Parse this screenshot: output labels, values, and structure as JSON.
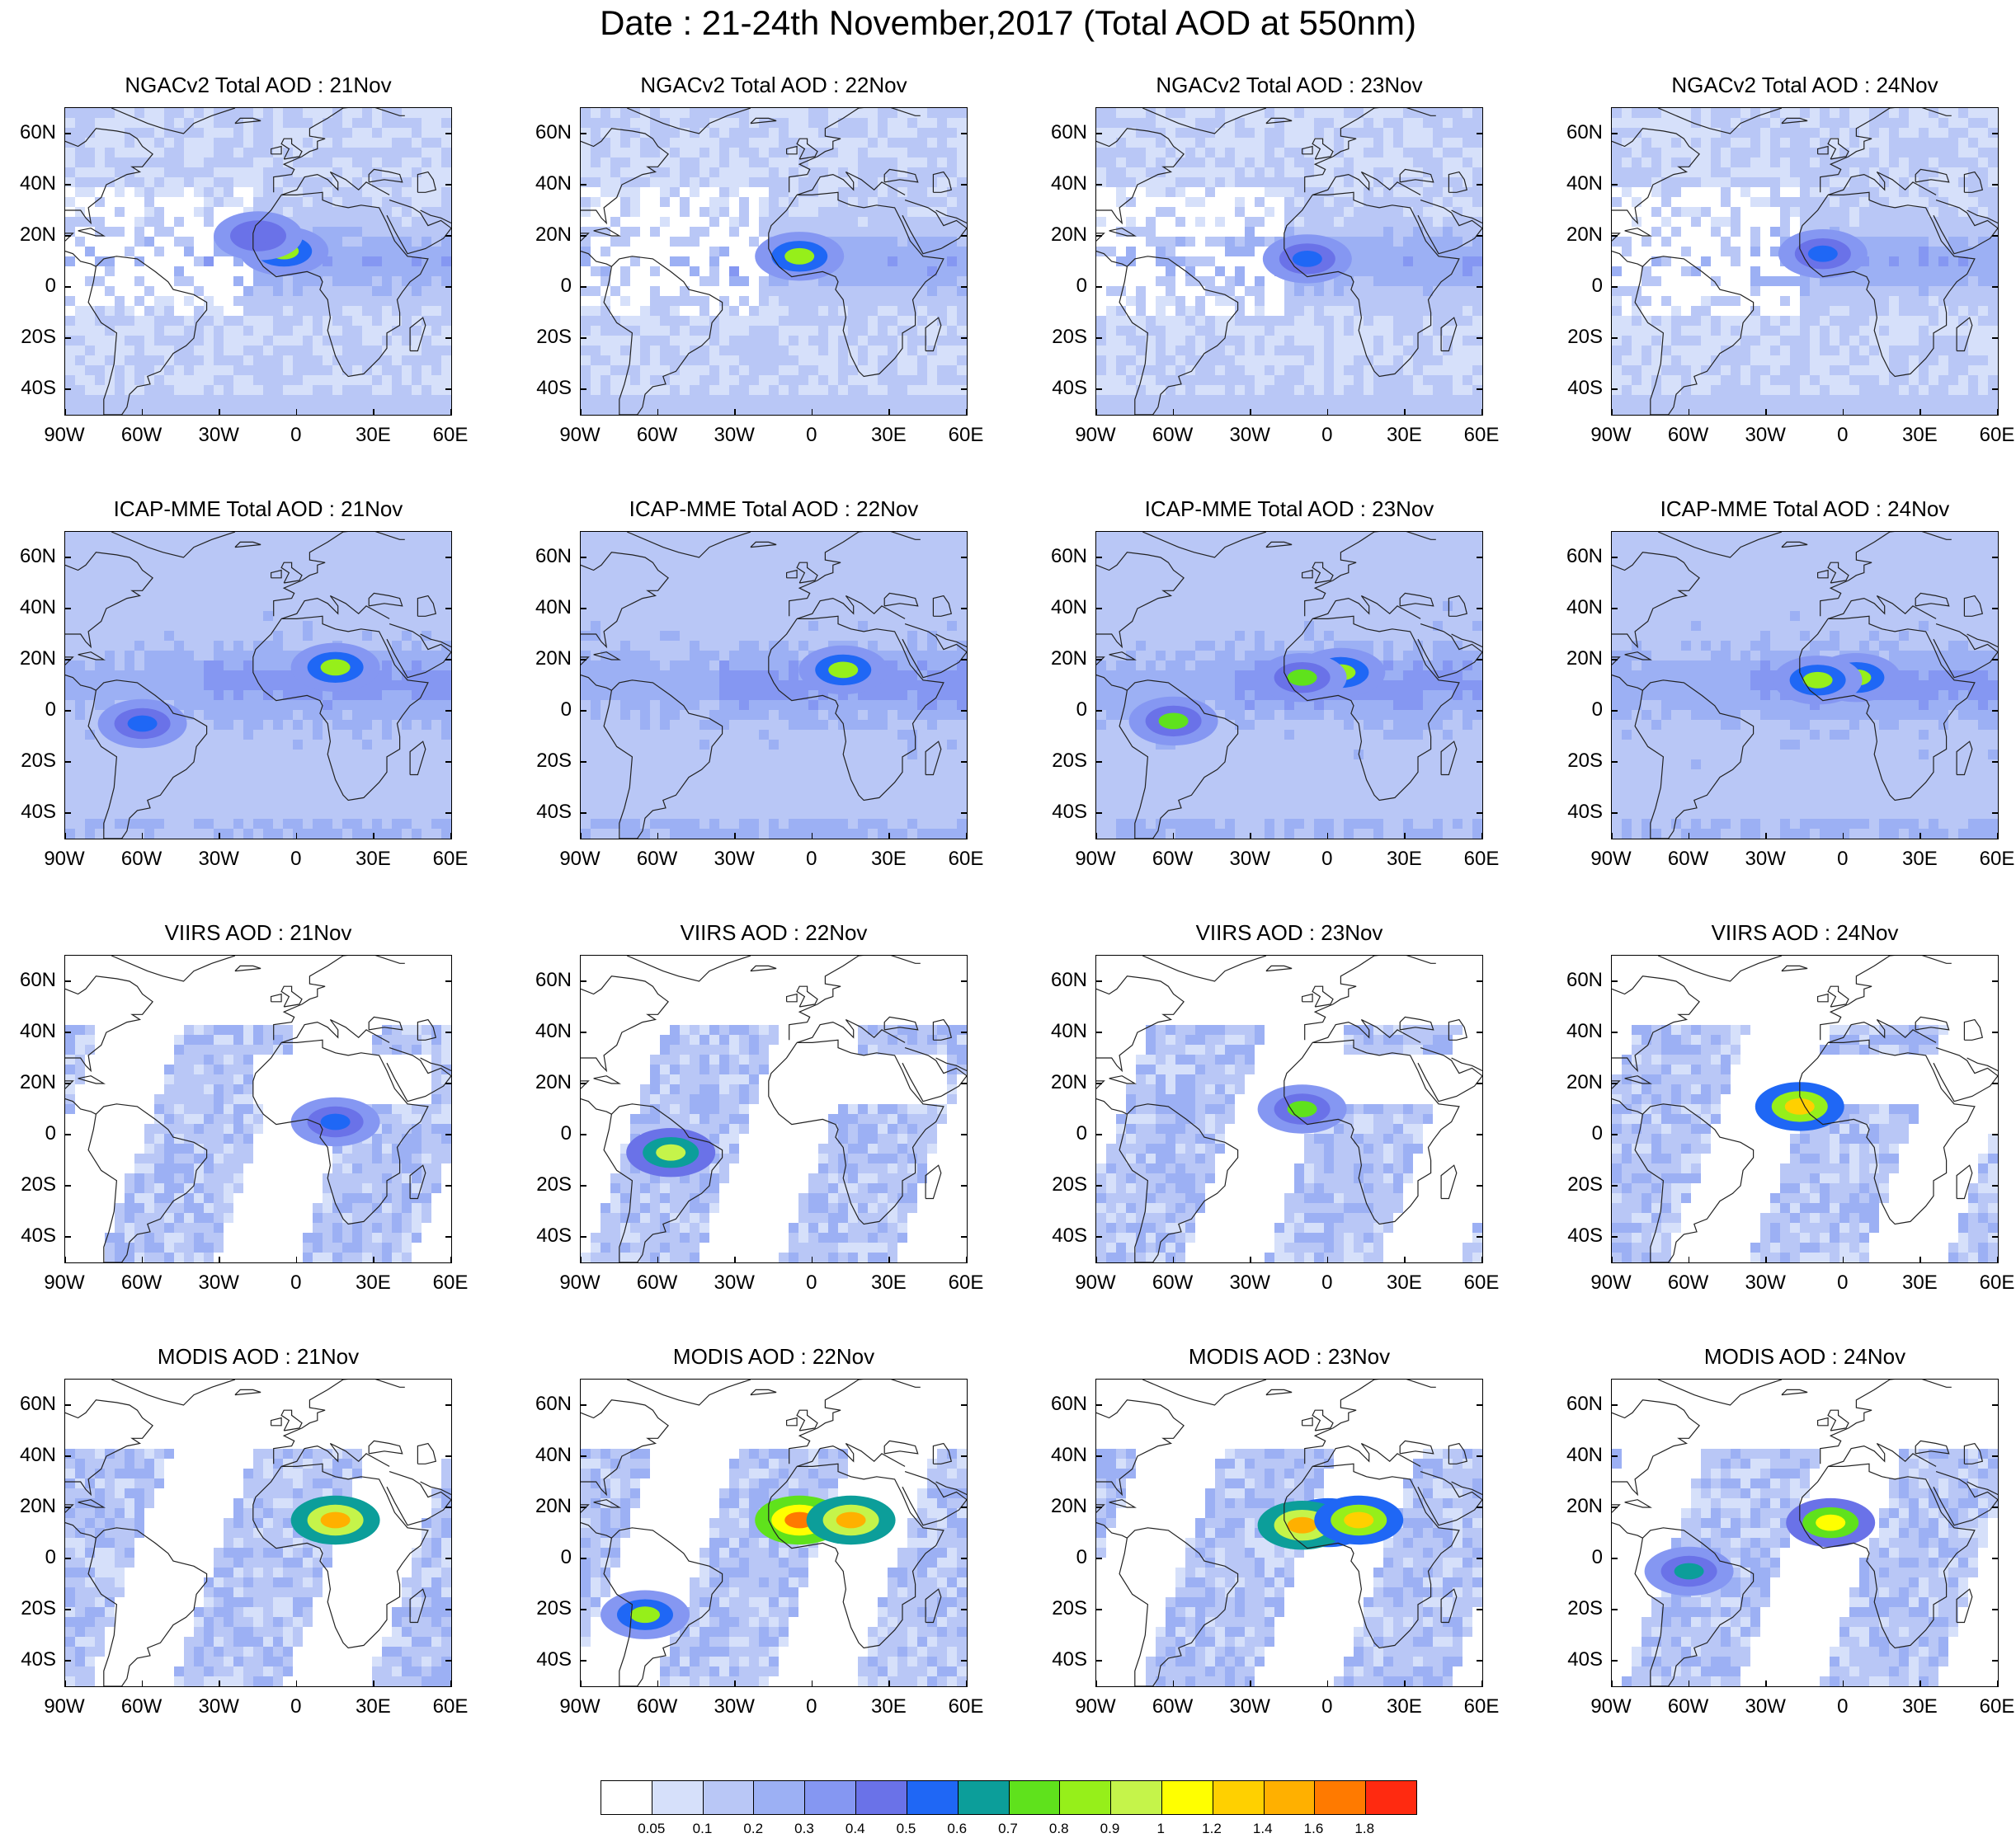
{
  "figure": {
    "title": "Date : 21-24th November,2017 (Total AOD at 550nm)"
  },
  "axes": {
    "lon_range": [
      -90,
      60
    ],
    "lat_range": [
      -50,
      70
    ],
    "lat_ticks": [
      {
        "value": 60,
        "label": "60N"
      },
      {
        "value": 40,
        "label": "40N"
      },
      {
        "value": 20,
        "label": "20N"
      },
      {
        "value": 0,
        "label": "0"
      },
      {
        "value": -20,
        "label": "20S"
      },
      {
        "value": -40,
        "label": "40S"
      }
    ],
    "lon_ticks": [
      {
        "value": -90,
        "label": "90W"
      },
      {
        "value": -60,
        "label": "60W"
      },
      {
        "value": -30,
        "label": "30W"
      },
      {
        "value": 0,
        "label": "0"
      },
      {
        "value": 30,
        "label": "30E"
      },
      {
        "value": 60,
        "label": "60E"
      }
    ]
  },
  "panels": [
    {
      "title": "NGACv2 Total AOD : 21Nov",
      "source": "NGACv2",
      "day": 21,
      "hotspots": [
        {
          "lon": -5,
          "lat": 14,
          "aod": 0.8
        },
        {
          "lon": -15,
          "lat": 20,
          "aod": 0.4
        }
      ]
    },
    {
      "title": "NGACv2 Total AOD : 22Nov",
      "source": "NGACv2",
      "day": 22,
      "hotspots": [
        {
          "lon": -5,
          "lat": 12,
          "aod": 0.8
        }
      ]
    },
    {
      "title": "NGACv2 Total AOD : 23Nov",
      "source": "NGACv2",
      "day": 23,
      "hotspots": [
        {
          "lon": -8,
          "lat": 11,
          "aod": 0.5
        }
      ]
    },
    {
      "title": "NGACv2 Total AOD : 24Nov",
      "source": "NGACv2",
      "day": 24,
      "hotspots": [
        {
          "lon": -8,
          "lat": 13,
          "aod": 0.5
        }
      ]
    },
    {
      "title": "ICAP-MME Total AOD : 21Nov",
      "source": "ICAP-MME",
      "day": 21,
      "hotspots": [
        {
          "lon": 15,
          "lat": 17,
          "aod": 0.8
        },
        {
          "lon": -60,
          "lat": -5,
          "aod": 0.5
        }
      ]
    },
    {
      "title": "ICAP-MME Total AOD : 22Nov",
      "source": "ICAP-MME",
      "day": 22,
      "hotspots": [
        {
          "lon": 12,
          "lat": 16,
          "aod": 0.8
        }
      ]
    },
    {
      "title": "ICAP-MME Total AOD : 23Nov",
      "source": "ICAP-MME",
      "day": 23,
      "hotspots": [
        {
          "lon": 5,
          "lat": 15,
          "aod": 0.8
        },
        {
          "lon": -10,
          "lat": 13,
          "aod": 0.7
        },
        {
          "lon": -60,
          "lat": -4,
          "aod": 0.7
        }
      ]
    },
    {
      "title": "ICAP-MME Total AOD : 24Nov",
      "source": "ICAP-MME",
      "day": 24,
      "hotspots": [
        {
          "lon": 5,
          "lat": 13,
          "aod": 0.8
        },
        {
          "lon": -10,
          "lat": 12,
          "aod": 0.8
        }
      ]
    },
    {
      "title": "VIIRS AOD : 21Nov",
      "source": "VIIRS",
      "day": 21,
      "hotspots": [
        {
          "lon": 15,
          "lat": 5,
          "aod": 0.5
        }
      ]
    },
    {
      "title": "VIIRS AOD : 22Nov",
      "source": "VIIRS",
      "day": 22,
      "hotspots": [
        {
          "lon": -55,
          "lat": -7,
          "aod": 0.9
        }
      ]
    },
    {
      "title": "VIIRS AOD : 23Nov",
      "source": "VIIRS",
      "day": 23,
      "hotspots": [
        {
          "lon": -10,
          "lat": 10,
          "aod": 0.7
        }
      ]
    },
    {
      "title": "VIIRS AOD : 24Nov",
      "source": "VIIRS",
      "day": 24,
      "hotspots": [
        {
          "lon": -17,
          "lat": 11,
          "aod": 1.2
        }
      ]
    },
    {
      "title": "MODIS AOD : 21Nov",
      "source": "MODIS",
      "day": 21,
      "hotspots": [
        {
          "lon": 15,
          "lat": 15,
          "aod": 1.4
        }
      ]
    },
    {
      "title": "MODIS AOD : 22Nov",
      "source": "MODIS",
      "day": 22,
      "hotspots": [
        {
          "lon": -5,
          "lat": 15,
          "aod": 1.6
        },
        {
          "lon": 15,
          "lat": 15,
          "aod": 1.4
        },
        {
          "lon": -65,
          "lat": -22,
          "aod": 0.8
        }
      ]
    },
    {
      "title": "MODIS AOD : 23Nov",
      "source": "MODIS",
      "day": 23,
      "hotspots": [
        {
          "lon": 0,
          "lat": 14,
          "aod": 1.2
        },
        {
          "lon": -10,
          "lat": 13,
          "aod": 1.4
        },
        {
          "lon": 12,
          "lat": 15,
          "aod": 1.2
        }
      ]
    },
    {
      "title": "MODIS AOD : 24Nov",
      "source": "MODIS",
      "day": 24,
      "hotspots": [
        {
          "lon": -5,
          "lat": 14,
          "aod": 1.0
        },
        {
          "lon": -60,
          "lat": -5,
          "aod": 0.6
        }
      ]
    }
  ],
  "colorbar": {
    "colors": [
      "#ffffff",
      "#d6e0fa",
      "#b9c7f6",
      "#9cb0f4",
      "#8597f2",
      "#6a72e8",
      "#1f67f5",
      "#0c9e9a",
      "#5fe21c",
      "#96ef1a",
      "#c5f44a",
      "#ffff00",
      "#ffd000",
      "#ffb000",
      "#ff7a00",
      "#ff2a10"
    ],
    "labels": [
      "0.05",
      "0.1",
      "0.2",
      "0.3",
      "0.4",
      "0.5",
      "0.6",
      "0.7",
      "0.8",
      "0.9",
      "1",
      "1.2",
      "1.4",
      "1.6",
      "1.8"
    ]
  }
}
